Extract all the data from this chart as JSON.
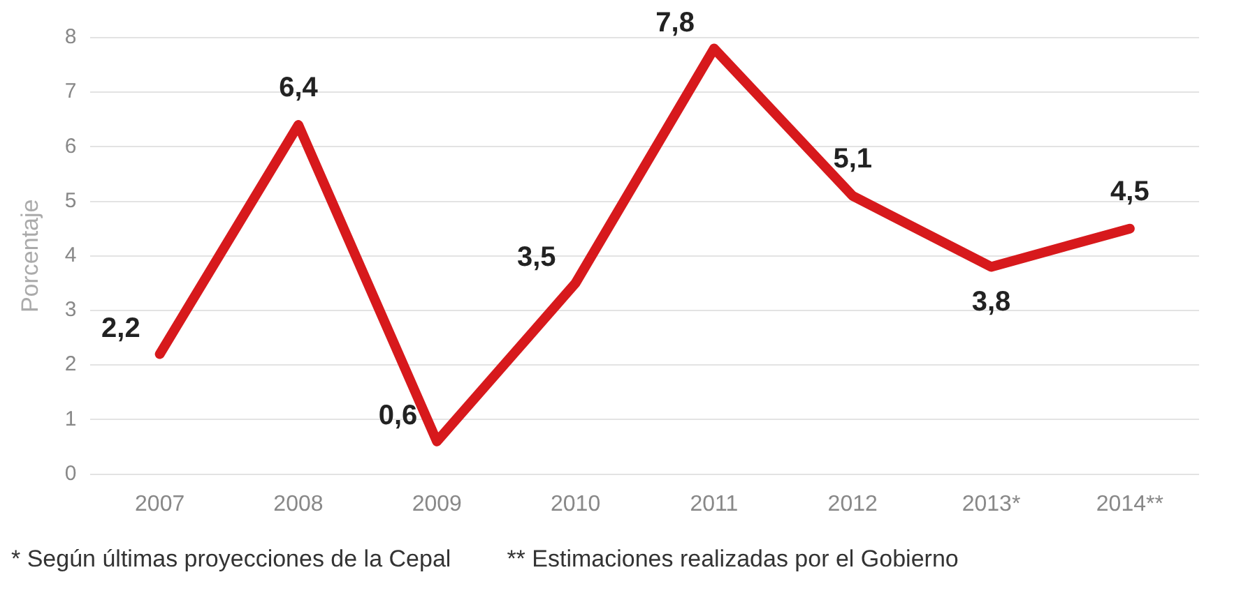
{
  "chart_data": {
    "type": "line",
    "ylabel": "Porcentaje",
    "categories": [
      "2007",
      "2008",
      "2009",
      "2010",
      "2011",
      "2012",
      "2013*",
      "2014**"
    ],
    "series": [
      {
        "color": "#d7191c",
        "values": [
          2.2,
          6.4,
          0.6,
          3.5,
          7.8,
          5.1,
          3.8,
          4.5
        ],
        "value_labels": [
          "2,2",
          "6,4",
          "0,6",
          "3,5",
          "7,8",
          "5,1",
          "3,8",
          "4,5"
        ]
      }
    ],
    "ylim": [
      0,
      8
    ],
    "yticks": [
      0,
      1,
      2,
      3,
      4,
      5,
      6,
      7,
      8
    ],
    "grid": "y",
    "legend": false,
    "marker": "none",
    "line_style": "solid",
    "annotations": [
      "* Según últimas proyecciones de la Cepal",
      "** Estimaciones realizadas por el Gobierno"
    ]
  }
}
